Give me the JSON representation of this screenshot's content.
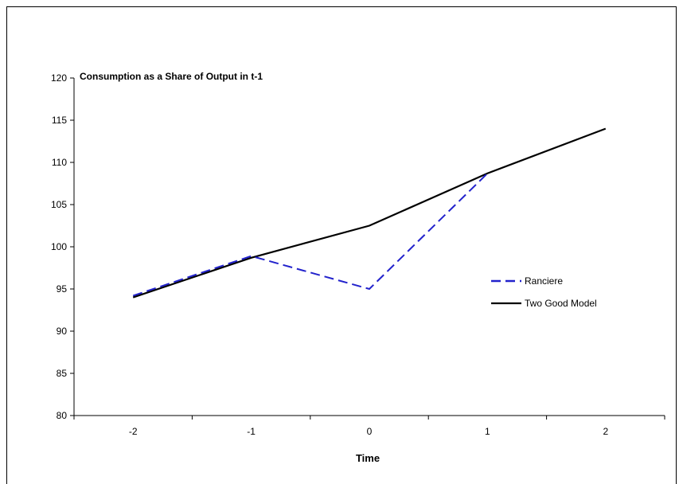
{
  "chart_data": {
    "type": "line",
    "title": "Consumption as a Share of Output in t-1",
    "xlabel": "Time",
    "ylabel": "",
    "x": [
      -2,
      -1,
      0,
      1,
      2
    ],
    "ylim": [
      80,
      120
    ],
    "yticks": [
      80,
      85,
      90,
      95,
      100,
      105,
      110,
      115,
      120
    ],
    "grid": false,
    "legend_position": "right",
    "series": [
      {
        "name": "Ranciere",
        "x": [
          -2,
          -1,
          0,
          1
        ],
        "values": [
          94.2,
          98.9,
          95.0,
          108.7
        ],
        "color": "#2222cc",
        "style": "dashed"
      },
      {
        "name": "Two Good Model",
        "x": [
          -2,
          -1,
          0,
          1,
          2
        ],
        "values": [
          94.0,
          98.7,
          102.5,
          108.7,
          114.0
        ],
        "color": "#000000",
        "style": "solid"
      }
    ]
  }
}
